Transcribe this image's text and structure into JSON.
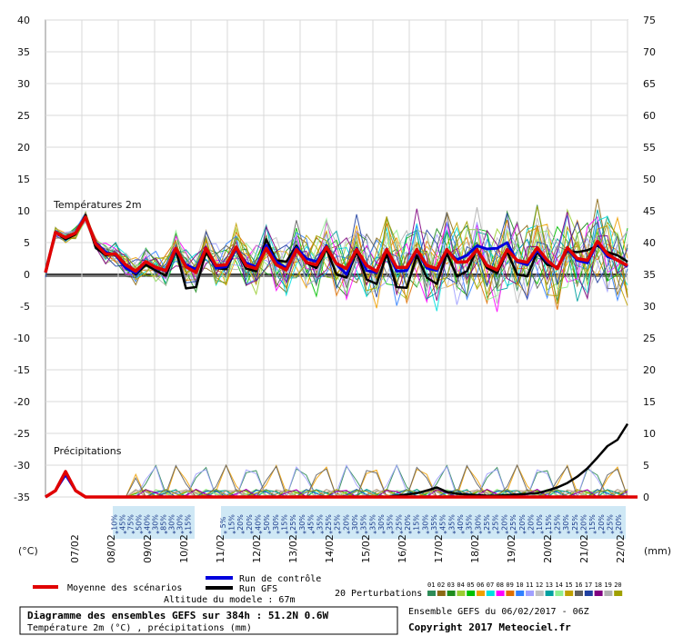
{
  "chart_data": {
    "type": "line",
    "title": "Diagramme des ensembles GEFS sur 384h : 51.2N 0.6W",
    "subtitle": "Température 2m (°C) , précipitations (mm)",
    "left_axis": {
      "unit": "(°C)",
      "ticks": [
        40,
        35,
        30,
        25,
        20,
        15,
        10,
        5,
        0,
        -5,
        -10,
        -15,
        -20,
        -25,
        -30,
        -35
      ],
      "ylim": [
        -35,
        40
      ]
    },
    "right_axis": {
      "unit": "(mm)",
      "ticks": [
        75,
        70,
        65,
        60,
        55,
        50,
        45,
        40,
        35,
        30,
        25,
        20,
        15,
        10,
        5,
        0
      ],
      "ylim": [
        0,
        75
      ]
    },
    "x_labels": [
      "07/02",
      "08/02",
      "09/02",
      "10/02",
      "11/02",
      "12/02",
      "13/02",
      "14/02",
      "15/02",
      "16/02",
      "17/02",
      "18/02",
      "19/02",
      "20/02",
      "21/02",
      "22/02"
    ],
    "panel_labels": {
      "temperature": "Températures 2m",
      "precipitation": "Précipitations"
    },
    "precip_probability_1": [
      "10%",
      "45%",
      "75%",
      "50%",
      "40%",
      "30%",
      "85%",
      "30%",
      "30%",
      "15%"
    ],
    "precip_probability_2": [
      "5%",
      "15%",
      "20%",
      "20%",
      "40%",
      "50%",
      "30%",
      "15%",
      "25%",
      "30%",
      "45%",
      "35%",
      "25%",
      "25%",
      "20%",
      "30%",
      "35%",
      "35%",
      "30%",
      "35%",
      "25%",
      "20%",
      "15%",
      "30%",
      "35%",
      "45%",
      "35%",
      "40%",
      "35%",
      "30%",
      "25%",
      "25%",
      "20%",
      "25%",
      "20%",
      "20%",
      "10%",
      "15%",
      "25%",
      "30%",
      "25%",
      "20%",
      "15%",
      "20%",
      "25%",
      "20%"
    ],
    "series": [
      {
        "name": "Moyenne des scénarios",
        "color": "#e00000",
        "temp": [
          0.3,
          6.6,
          5.8,
          6.5,
          9.0,
          4.8,
          3.2,
          3.2,
          1.5,
          0.5,
          2.0,
          1.1,
          0.6,
          4.1,
          1.2,
          0.3,
          4.1,
          1.4,
          1.5,
          4.3,
          1.4,
          0.9,
          4.1,
          1.5,
          0.7,
          3.9,
          1.9,
          1.5,
          4.3,
          1.7,
          0.9,
          3.9,
          1.4,
          0.5,
          3.9,
          1.1,
          1.1,
          3.9,
          1.4,
          0.9,
          3.9,
          1.9,
          2.0,
          3.9,
          1.4,
          0.7,
          3.9,
          2.2,
          1.9,
          4.2,
          2.2,
          0.9,
          4.2,
          2.5,
          2.2,
          5.2,
          3.2,
          2.2,
          1.4
        ],
        "precip": [
          0,
          1,
          4,
          1,
          0,
          0,
          0,
          0,
          0,
          0,
          0,
          0,
          0,
          0,
          0,
          0,
          0,
          0,
          0,
          0,
          0,
          0,
          0,
          0,
          0,
          0,
          0,
          0,
          0,
          0,
          0,
          0,
          0,
          0,
          0,
          0,
          0,
          0,
          0,
          0,
          0,
          0,
          0,
          0,
          0,
          0,
          0,
          0,
          0,
          0,
          0,
          0,
          0,
          0,
          0,
          0,
          0,
          0,
          0,
          0
        ]
      },
      {
        "name": "Run de contrôle",
        "color": "#0000dd",
        "temp": [
          0.3,
          6.6,
          5.8,
          6.5,
          9.0,
          5.0,
          3.5,
          3.0,
          1.0,
          0.2,
          2.0,
          1.0,
          0.5,
          3.9,
          1.5,
          0.8,
          4.2,
          1.0,
          1.2,
          4.0,
          1.8,
          1.2,
          4.6,
          2.0,
          1.0,
          4.2,
          2.5,
          2.0,
          4.5,
          1.6,
          0.0,
          4.1,
          0.6,
          0.3,
          4.0,
          0.5,
          0.6,
          3.8,
          1.0,
          0.6,
          3.8,
          2.3,
          3.0,
          4.5,
          4.0,
          4.1,
          5.0,
          2.0,
          1.5,
          3.8,
          2.0,
          1.0,
          4.0,
          2.2,
          1.8,
          5.0,
          2.8,
          2.3,
          1.2
        ],
        "precip": [
          0,
          1,
          3.5,
          1,
          0,
          0,
          0,
          0,
          0,
          0,
          0,
          0,
          0,
          0,
          0,
          0,
          0,
          0,
          0,
          0,
          0,
          0,
          0,
          0,
          0,
          0,
          0,
          0,
          0,
          0,
          0,
          0,
          0,
          0,
          0,
          0,
          0,
          0,
          0,
          0,
          0,
          0,
          0,
          0,
          0,
          0,
          0,
          0,
          0,
          0,
          0,
          0,
          0,
          0,
          0,
          0,
          0,
          0,
          0,
          0
        ]
      },
      {
        "name": "Run GFS",
        "color": "#000000",
        "temp": [
          0.3,
          6.6,
          5.5,
          6.3,
          9.3,
          4.2,
          3.0,
          3.3,
          1.2,
          0.0,
          1.5,
          0.6,
          -0.2,
          3.8,
          -2.2,
          -2.0,
          3.5,
          1.0,
          0.8,
          4.0,
          0.9,
          0.5,
          5.5,
          2.2,
          2.0,
          4.5,
          1.8,
          1.0,
          4.0,
          0.0,
          -0.5,
          3.6,
          -0.8,
          -1.5,
          3.2,
          -2.0,
          -2.1,
          3.0,
          -0.5,
          -1.5,
          3.3,
          -0.3,
          0.5,
          4.0,
          1.0,
          0.2,
          3.6,
          0.0,
          -0.3,
          3.5,
          1.5,
          1.2,
          3.7,
          3.5,
          3.8,
          4.5,
          3.5,
          3.0,
          2.0
        ],
        "precip": [
          0,
          1,
          3.5,
          1,
          0,
          0,
          0,
          0,
          0,
          0,
          0,
          0,
          0,
          0,
          0,
          0,
          0,
          0,
          0,
          0,
          0,
          0,
          0,
          0,
          0,
          0,
          0,
          0,
          0,
          0,
          0,
          0,
          0,
          0,
          0,
          0.2,
          0.4,
          0.6,
          1.0,
          1.5,
          0.8,
          0.5,
          0.4,
          0.3,
          0.2,
          0.2,
          0.3,
          0.4,
          0.5,
          0.6,
          1.0,
          1.5,
          2.2,
          3.2,
          4.5,
          6.2,
          8.0,
          9.0,
          11.5
        ]
      }
    ],
    "perturbations": {
      "label": "20 Perturbations",
      "ids": [
        "01",
        "02",
        "03",
        "04",
        "05",
        "06",
        "07",
        "08",
        "09",
        "10",
        "11",
        "12",
        "13",
        "14",
        "15",
        "16",
        "17",
        "18",
        "19",
        "20"
      ],
      "colors": [
        "#2e8b57",
        "#8b6914",
        "#1e8c1e",
        "#9acd32",
        "#00c000",
        "#f0a000",
        "#00e0e0",
        "#ff00ff",
        "#e07000",
        "#3080ff",
        "#a0a0ff",
        "#c0c0c0",
        "#00a0a0",
        "#90ee90",
        "#c0a000",
        "#606060",
        "#2040a0",
        "#800080",
        "#b0b0b0",
        "#a0a000"
      ]
    }
  },
  "legend": {
    "mean": "Moyenne des scénarios",
    "control": "Run de contrôle",
    "gfs": "Run GFS"
  },
  "footer": {
    "altitude": "Altitude du modele : 67m",
    "title": "Diagramme des ensembles GEFS sur 384h : 51.2N 0.6W",
    "subtitle": "Température 2m (°C) , précipitations (mm)",
    "run": "Ensemble GEFS du 06/02/2017 - 06Z",
    "copyright": "Copyright 2017 Meteociel.fr"
  }
}
